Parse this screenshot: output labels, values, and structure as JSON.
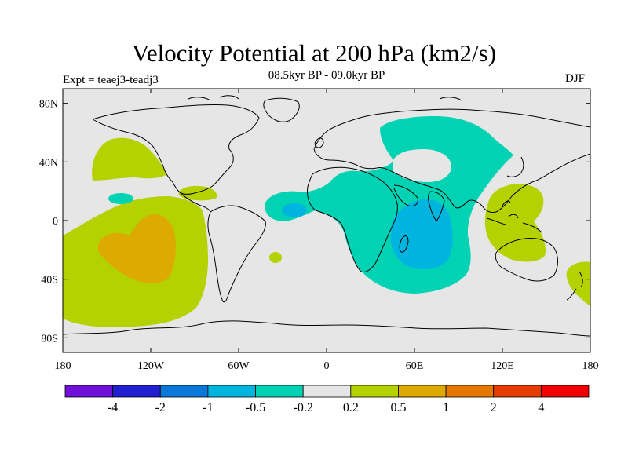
{
  "figure": {
    "title": "Velocity Potential at 200 hPa (km2/s)",
    "subtitle": "08.5kyr BP - 09.0kyr BP",
    "experiment": "Expt = teaej3-teadj3",
    "season": "DJF"
  },
  "map": {
    "projection": "cylindrical-equidistant",
    "lon_range": [
      -180,
      180
    ],
    "lat_range": [
      -90,
      90
    ],
    "y_tick_labels": [
      "80N",
      "40N",
      "0",
      "40S",
      "80S"
    ],
    "y_tick_values": [
      80,
      40,
      0,
      -40,
      -80
    ],
    "x_tick_labels": [
      "180",
      "120W",
      "60W",
      "0",
      "60E",
      "120E",
      "180"
    ],
    "x_tick_values": [
      -180,
      -120,
      -60,
      0,
      60,
      120,
      180
    ]
  },
  "colorbar": {
    "colors": [
      "#7010d8",
      "#2020d0",
      "#0a78d8",
      "#00b4e0",
      "#00d2b4",
      "#e6e6e6",
      "#b4d200",
      "#dcaa00",
      "#e67800",
      "#e63c00",
      "#f00000"
    ],
    "labels": [
      "-4",
      "-2",
      "-1",
      "-0.5",
      "-0.2",
      "0.2",
      "0.5",
      "1",
      "2",
      "4"
    ]
  },
  "colors": {
    "background": "#e6e6e6",
    "land_outline": "#000000"
  }
}
